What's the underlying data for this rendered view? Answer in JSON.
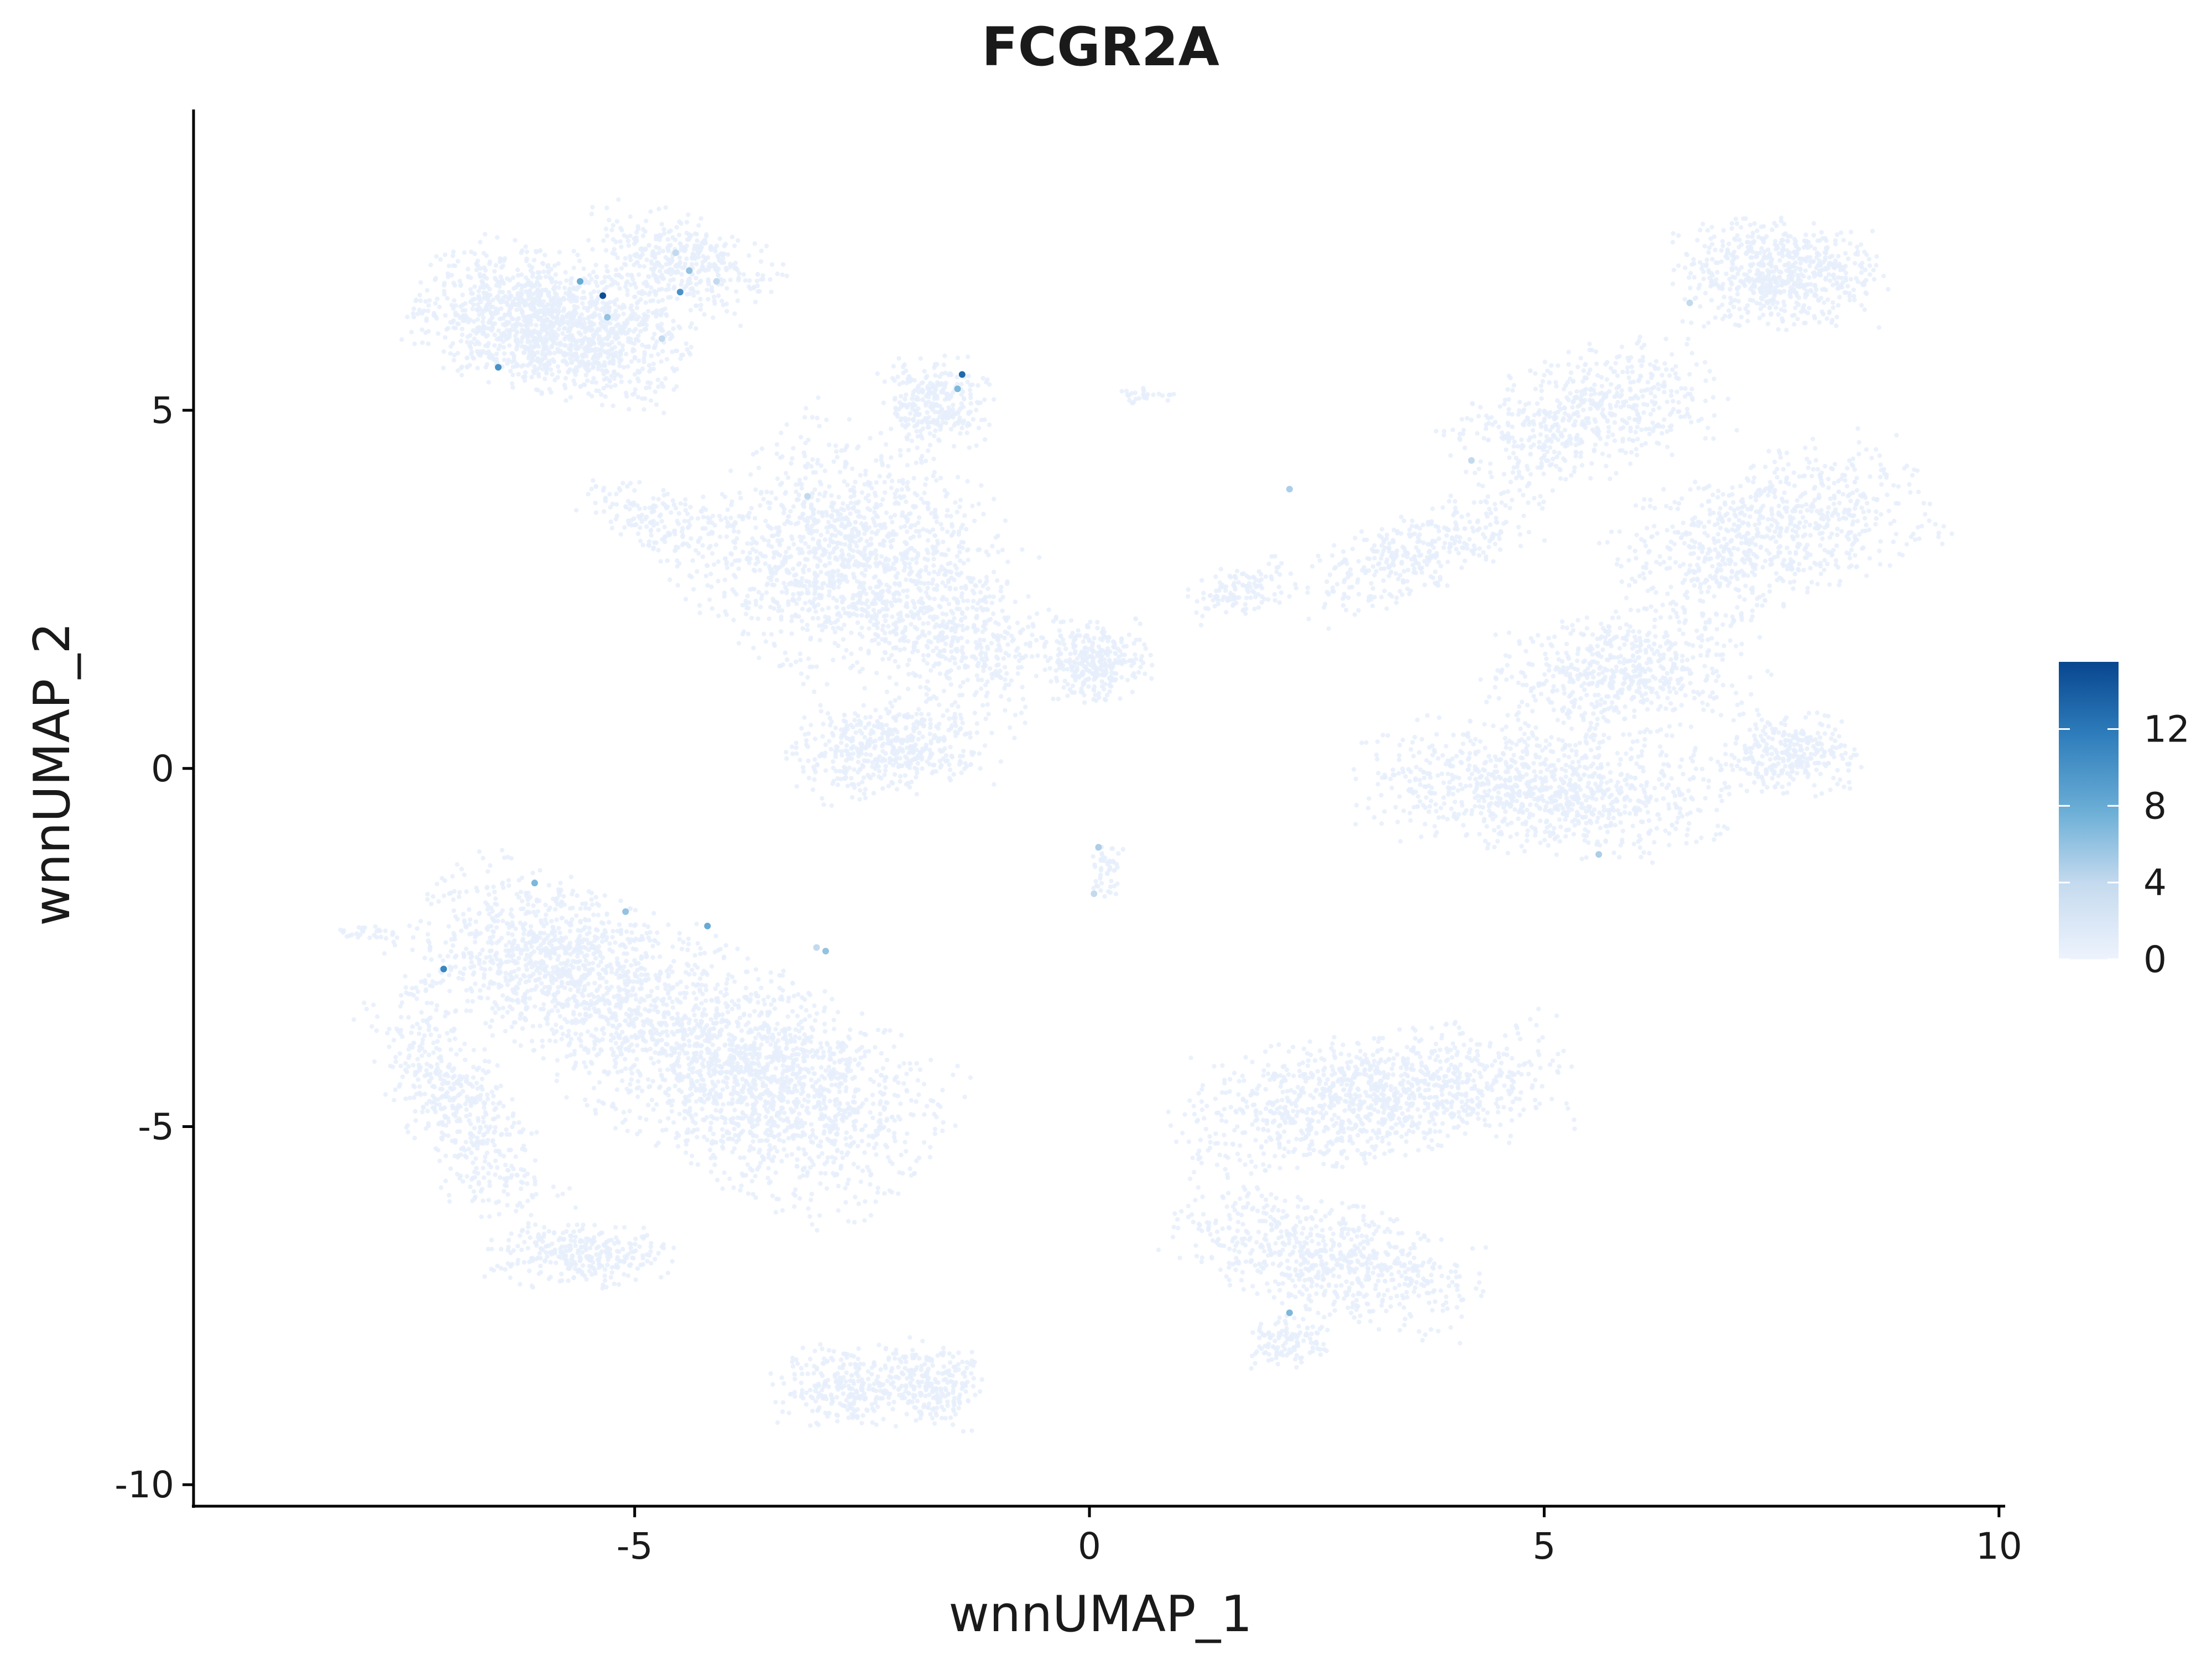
{
  "chart_data": {
    "type": "scatter",
    "title": "FCGR2A",
    "xlabel": "wnnUMAP_1",
    "ylabel": "wnnUMAP_2",
    "xlim": [
      -9.85,
      10.05
    ],
    "ylim": [
      -10.3,
      9.2
    ],
    "x_ticks": [
      -5,
      0,
      5,
      10
    ],
    "y_ticks": [
      5,
      0,
      -5,
      -10
    ],
    "x_tick_labels": [
      "-5",
      "0",
      "5",
      "10"
    ],
    "y_tick_labels": [
      "5",
      "0",
      "-5",
      "-10"
    ],
    "grid": false,
    "legend": {
      "placement": "right",
      "title": "",
      "scale": "continuous",
      "min": 0,
      "max": 15.5,
      "ticks": [
        0,
        4,
        8,
        12
      ],
      "tick_labels": [
        "0",
        "4",
        "8",
        "12"
      ],
      "low_color": "#eef3fd",
      "high_color": "#08468f"
    },
    "point_color_base": "#e6eefb",
    "clusters": [
      {
        "cx": -5.9,
        "cy": 6.2,
        "sx": 1.2,
        "sy": 0.75,
        "rot": -18,
        "n": 1500
      },
      {
        "cx": -4.5,
        "cy": 7.1,
        "sx": 0.9,
        "sy": 0.5,
        "rot": -25,
        "n": 400
      },
      {
        "cx": -2.7,
        "cy": 3.0,
        "sx": 1.3,
        "sy": 1.3,
        "rot": -40,
        "n": 1300
      },
      {
        "cx": -1.7,
        "cy": 5.1,
        "sx": 0.5,
        "sy": 0.5,
        "rot": 0,
        "n": 300
      },
      {
        "cx": -2.2,
        "cy": 0.3,
        "sx": 0.9,
        "sy": 0.55,
        "rot": 10,
        "n": 500
      },
      {
        "cx": 0.1,
        "cy": 1.5,
        "sx": 0.45,
        "sy": 0.45,
        "rot": 0,
        "n": 300
      },
      {
        "cx": -1.4,
        "cy": 1.8,
        "sx": 1.0,
        "sy": 0.7,
        "rot": -35,
        "n": 450
      },
      {
        "cx": -4.8,
        "cy": 3.5,
        "sx": 0.7,
        "sy": 0.35,
        "rot": -30,
        "n": 150
      },
      {
        "cx": 0.6,
        "cy": 5.2,
        "sx": 0.25,
        "sy": 0.1,
        "rot": 0,
        "n": 30
      },
      {
        "cx": 0.2,
        "cy": -1.4,
        "sx": 0.15,
        "sy": 0.3,
        "rot": 0,
        "n": 50
      },
      {
        "cx": 7.6,
        "cy": 6.9,
        "sx": 0.9,
        "sy": 0.6,
        "rot": 0,
        "n": 650
      },
      {
        "cx": 5.4,
        "cy": 4.9,
        "sx": 1.2,
        "sy": 0.7,
        "rot": 25,
        "n": 600
      },
      {
        "cx": 3.6,
        "cy": 3.0,
        "sx": 1.2,
        "sy": 0.45,
        "rot": 30,
        "n": 350
      },
      {
        "cx": 1.7,
        "cy": 2.5,
        "sx": 0.5,
        "sy": 0.3,
        "rot": 30,
        "n": 120
      },
      {
        "cx": 7.5,
        "cy": 3.3,
        "sx": 1.4,
        "sy": 0.8,
        "rot": 25,
        "n": 800
      },
      {
        "cx": 5.9,
        "cy": 1.3,
        "sx": 1.2,
        "sy": 0.7,
        "rot": 15,
        "n": 600
      },
      {
        "cx": 5.0,
        "cy": -0.3,
        "sx": 1.6,
        "sy": 0.7,
        "rot": -5,
        "n": 950
      },
      {
        "cx": 7.7,
        "cy": 0.2,
        "sx": 0.6,
        "sy": 0.45,
        "rot": 0,
        "n": 300
      },
      {
        "cx": -5.8,
        "cy": -2.8,
        "sx": 1.4,
        "sy": 0.9,
        "rot": -30,
        "n": 1200
      },
      {
        "cx": -3.6,
        "cy": -4.4,
        "sx": 1.6,
        "sy": 1.1,
        "rot": -35,
        "n": 1700
      },
      {
        "cx": -6.9,
        "cy": -4.8,
        "sx": 0.5,
        "sy": 1.4,
        "rot": 25,
        "n": 500
      },
      {
        "cx": -5.6,
        "cy": -6.8,
        "sx": 0.8,
        "sy": 0.35,
        "rot": 0,
        "n": 300
      },
      {
        "cx": -7.9,
        "cy": -2.3,
        "sx": 0.3,
        "sy": 0.08,
        "rot": 0,
        "n": 30
      },
      {
        "cx": -2.6,
        "cy": -8.6,
        "sx": 0.7,
        "sy": 0.45,
        "rot": 0,
        "n": 300
      },
      {
        "cx": -1.7,
        "cy": -8.6,
        "sx": 0.4,
        "sy": 0.5,
        "rot": 0,
        "n": 200
      },
      {
        "cx": 3.1,
        "cy": -4.6,
        "sx": 1.7,
        "sy": 0.7,
        "rot": 10,
        "n": 1100
      },
      {
        "cx": 2.6,
        "cy": -6.8,
        "sx": 1.4,
        "sy": 0.6,
        "rot": -20,
        "n": 700
      },
      {
        "cx": 2.2,
        "cy": -8.0,
        "sx": 0.35,
        "sy": 0.3,
        "rot": 0,
        "n": 120
      }
    ],
    "highlighted_points": [
      {
        "x": -5.35,
        "y": 6.6,
        "value": 15
      },
      {
        "x": -5.3,
        "y": 6.3,
        "value": 6
      },
      {
        "x": -5.6,
        "y": 6.8,
        "value": 8
      },
      {
        "x": -4.5,
        "y": 6.65,
        "value": 10
      },
      {
        "x": -4.4,
        "y": 6.95,
        "value": 6
      },
      {
        "x": -4.55,
        "y": 7.2,
        "value": 4
      },
      {
        "x": -4.1,
        "y": 6.8,
        "value": 4
      },
      {
        "x": -4.7,
        "y": 6.0,
        "value": 4
      },
      {
        "x": -6.5,
        "y": 5.6,
        "value": 10
      },
      {
        "x": -1.4,
        "y": 5.5,
        "value": 13
      },
      {
        "x": -1.45,
        "y": 5.3,
        "value": 7
      },
      {
        "x": -3.1,
        "y": 3.8,
        "value": 4
      },
      {
        "x": -7.1,
        "y": -2.8,
        "value": 11
      },
      {
        "x": -6.1,
        "y": -1.6,
        "value": 7
      },
      {
        "x": -5.1,
        "y": -2.0,
        "value": 6
      },
      {
        "x": -4.2,
        "y": -2.2,
        "value": 8
      },
      {
        "x": -2.9,
        "y": -2.55,
        "value": 6
      },
      {
        "x": -3.0,
        "y": -2.5,
        "value": 4
      },
      {
        "x": 0.1,
        "y": -1.1,
        "value": 5
      },
      {
        "x": 0.05,
        "y": -1.75,
        "value": 4
      },
      {
        "x": 2.2,
        "y": 3.9,
        "value": 5
      },
      {
        "x": 2.2,
        "y": -7.6,
        "value": 7
      },
      {
        "x": 5.6,
        "y": -1.2,
        "value": 5
      },
      {
        "x": 4.2,
        "y": 4.3,
        "value": 4
      },
      {
        "x": 6.6,
        "y": 6.5,
        "value": 4
      }
    ]
  }
}
